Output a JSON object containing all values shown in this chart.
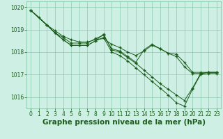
{
  "background_color": "#cef0e4",
  "grid_color": "#7abfa0",
  "line_color": "#1a5c1a",
  "xlabel": "Graphe pression niveau de la mer (hPa)",
  "xlabel_fontsize": 7.5,
  "xlim": [
    -0.5,
    23.5
  ],
  "ylim": [
    1015.5,
    1020.25
  ],
  "yticks": [
    1016,
    1017,
    1018,
    1019,
    1020
  ],
  "xticks": [
    0,
    1,
    2,
    3,
    4,
    5,
    6,
    7,
    8,
    9,
    10,
    11,
    12,
    13,
    14,
    15,
    16,
    17,
    18,
    19,
    20,
    21,
    22,
    23
  ],
  "lines": [
    {
      "x": [
        0,
        1,
        2,
        3,
        4,
        5,
        6,
        7,
        8,
        9,
        10,
        11,
        12,
        13,
        14,
        15,
        16,
        17,
        18,
        19,
        20,
        21,
        22,
        23
      ],
      "y": [
        1019.85,
        1019.55,
        1019.2,
        1018.95,
        1018.7,
        1018.55,
        1018.45,
        1018.45,
        1018.55,
        1018.6,
        1018.35,
        1018.2,
        1018.0,
        1017.85,
        1018.05,
        1018.3,
        1018.15,
        1017.95,
        1017.9,
        1017.55,
        1017.1,
        1017.1,
        1017.1,
        1017.1
      ]
    },
    {
      "x": [
        0,
        2,
        3,
        4,
        5,
        6,
        7,
        8,
        9,
        10,
        11,
        12,
        13,
        14,
        15,
        16,
        17,
        18,
        19,
        20,
        21,
        22,
        23
      ],
      "y": [
        1019.85,
        1019.2,
        1018.85,
        1018.65,
        1018.4,
        1018.4,
        1018.4,
        1018.6,
        1018.75,
        1018.15,
        1018.05,
        1017.8,
        1017.55,
        1018.1,
        1018.35,
        1018.15,
        1017.95,
        1017.8,
        1017.35,
        1017.05,
        1017.05,
        1017.1,
        1017.1
      ]
    },
    {
      "x": [
        0,
        2,
        3,
        4,
        5,
        6,
        7,
        8,
        9,
        10,
        11,
        12,
        13,
        14,
        15,
        16,
        17,
        18,
        19,
        20,
        21,
        22,
        23
      ],
      "y": [
        1019.85,
        1019.2,
        1018.85,
        1018.55,
        1018.3,
        1018.3,
        1018.3,
        1018.5,
        1018.8,
        1018.1,
        1018.0,
        1017.75,
        1017.5,
        1017.2,
        1016.9,
        1016.6,
        1016.35,
        1016.1,
        1015.85,
        1016.4,
        1017.05,
        1017.1,
        1017.1
      ]
    },
    {
      "x": [
        0,
        3,
        4,
        5,
        6,
        7,
        8,
        9,
        10,
        11,
        12,
        13,
        14,
        15,
        16,
        17,
        18,
        19,
        20,
        21,
        22,
        23
      ],
      "y": [
        1019.85,
        1018.85,
        1018.55,
        1018.3,
        1018.3,
        1018.3,
        1018.5,
        1018.65,
        1018.0,
        1017.85,
        1017.6,
        1017.3,
        1017.0,
        1016.7,
        1016.4,
        1016.1,
        1015.75,
        1015.6,
        1016.35,
        1017.0,
        1017.05,
        1017.05
      ]
    }
  ]
}
